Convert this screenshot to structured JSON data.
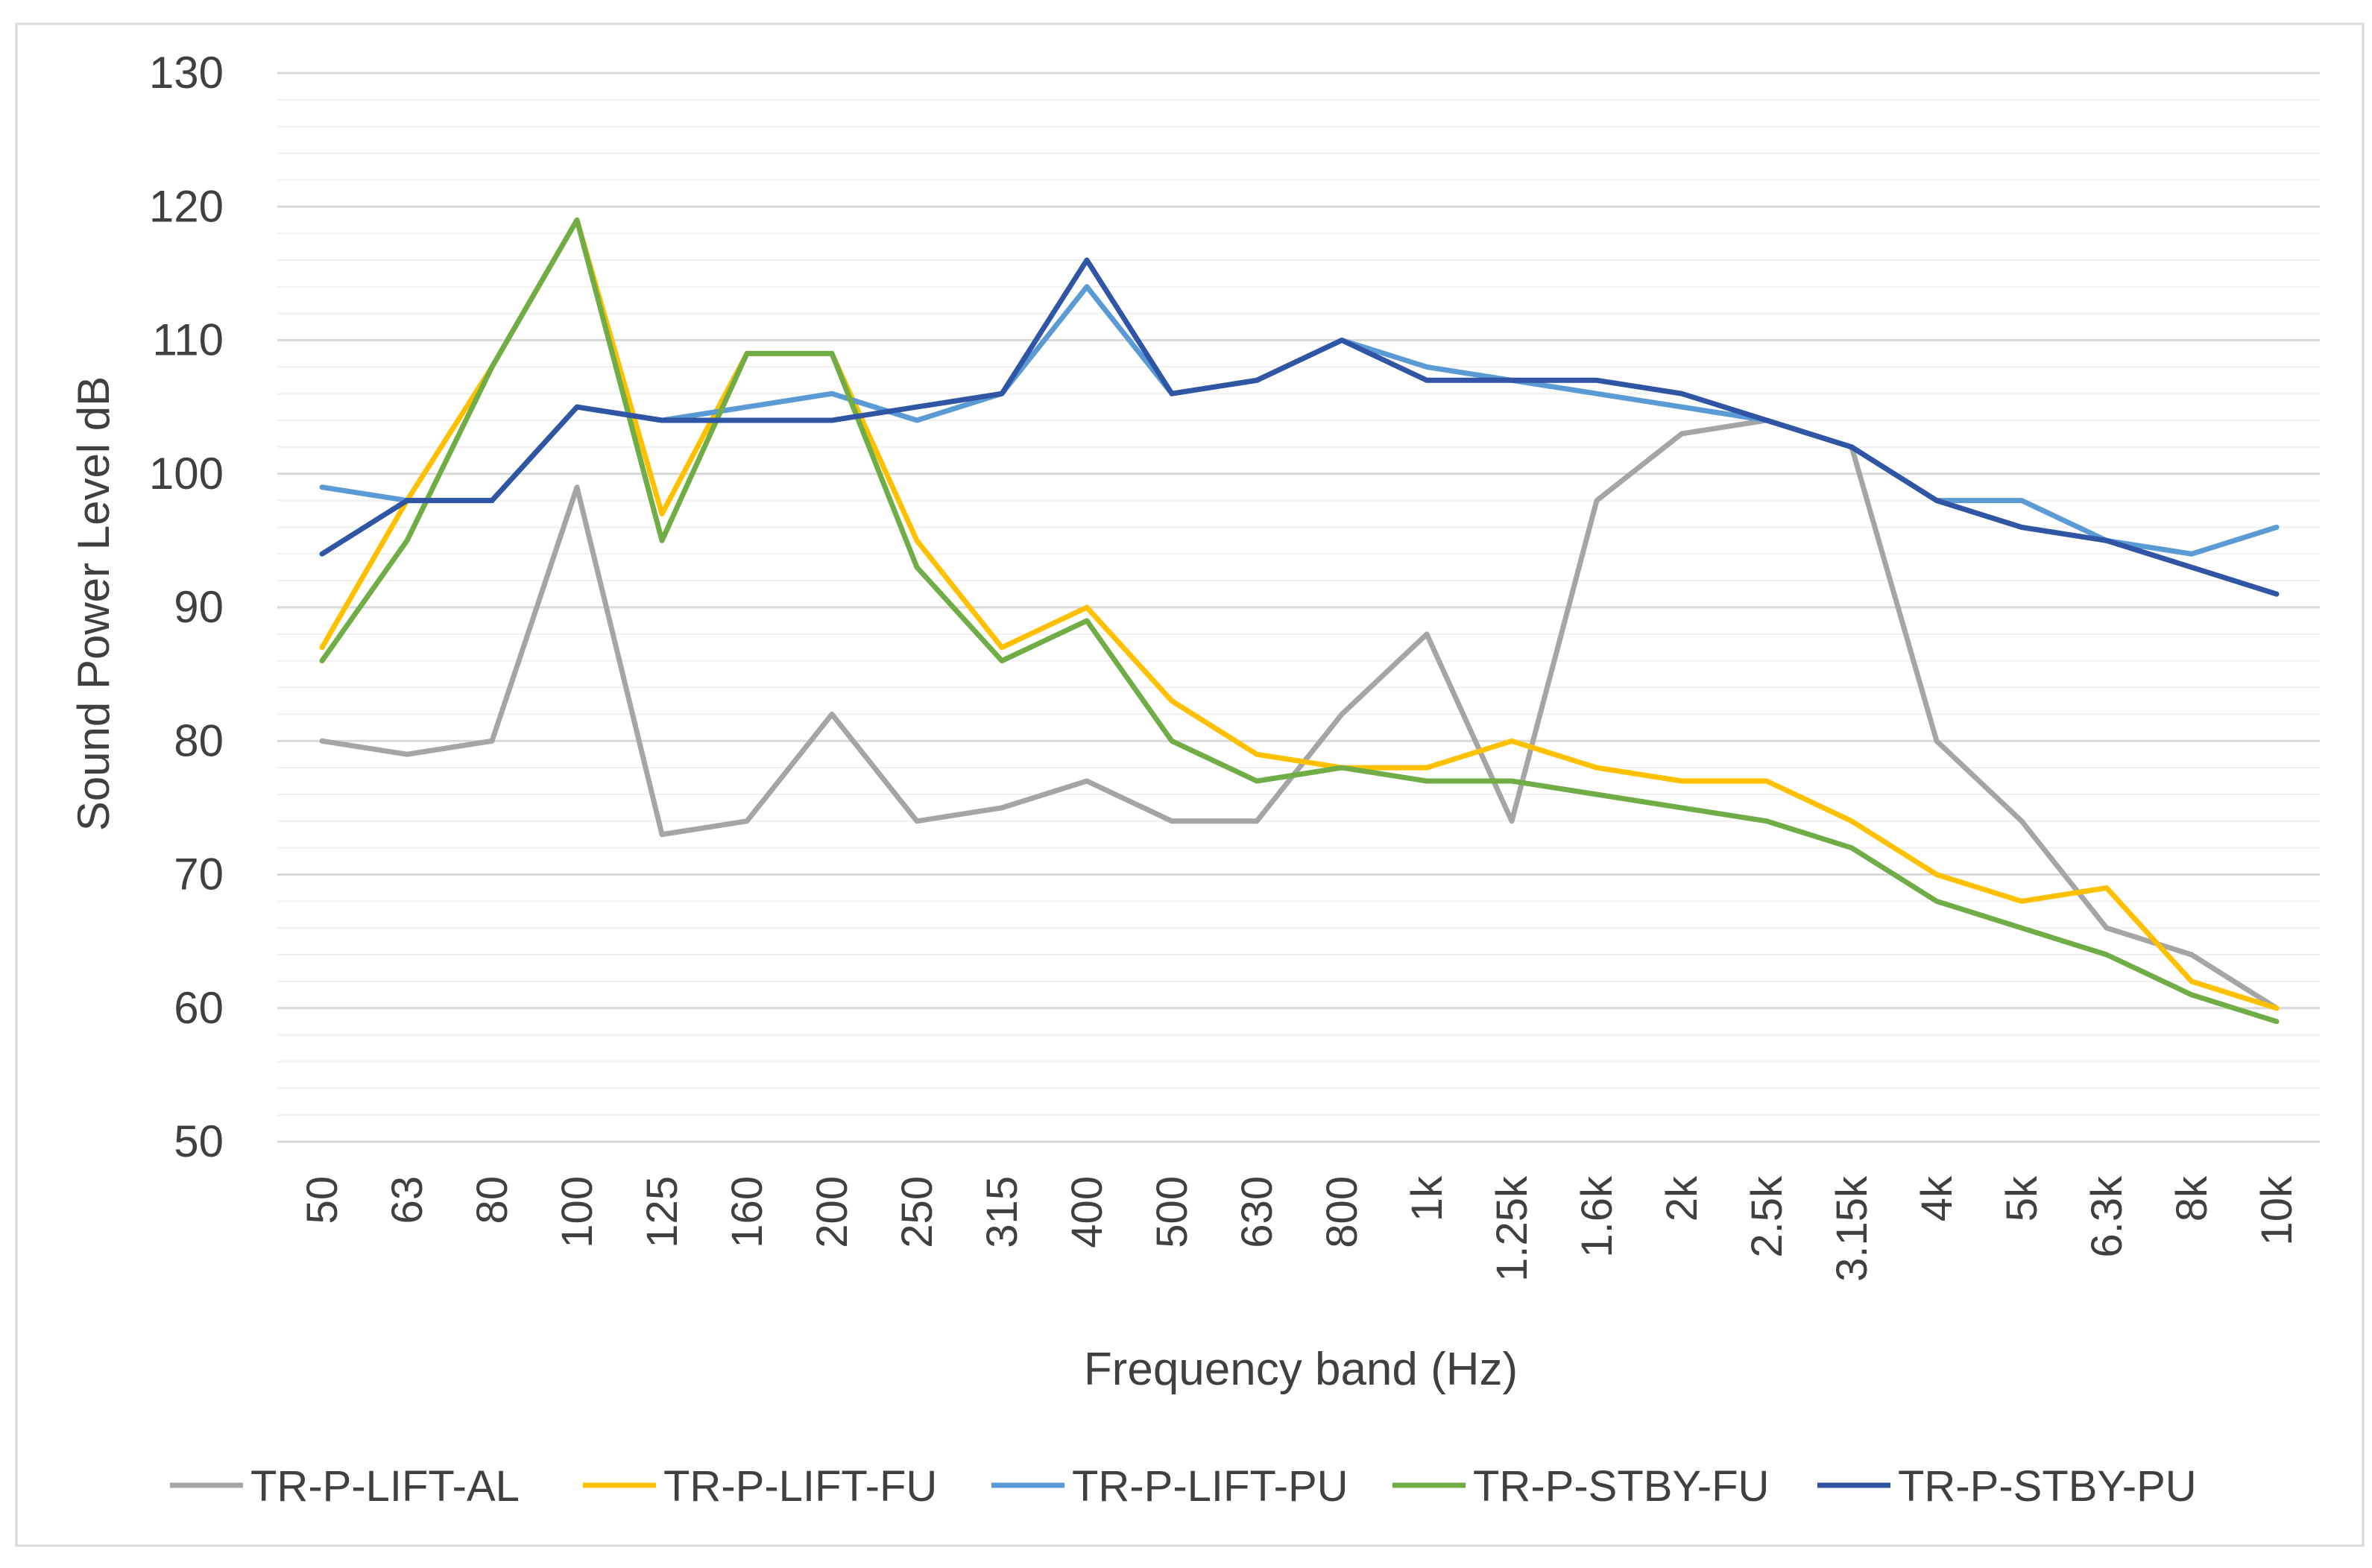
{
  "chart_data": {
    "type": "line",
    "title": "",
    "xlabel": "Frequency band (Hz)",
    "ylabel": "Sound Power Level dB",
    "ylim": [
      50,
      130
    ],
    "ymajor_step": 10,
    "yminor_step": 2,
    "yticks": [
      "50",
      "60",
      "70",
      "80",
      "90",
      "100",
      "110",
      "120",
      "130"
    ],
    "grid": true,
    "legend_position": "bottom",
    "categories": [
      "50",
      "63",
      "80",
      "100",
      "125",
      "160",
      "200",
      "250",
      "315",
      "400",
      "500",
      "630",
      "800",
      "1k",
      "1.25k",
      "1.6k",
      "2k",
      "2.5k",
      "3.15k",
      "4k",
      "5k",
      "6.3k",
      "8k",
      "10k"
    ],
    "series": [
      {
        "name": "TR-P-LIFT-AL",
        "color": "#a5a5a5",
        "values": [
          80,
          79,
          80,
          99,
          73,
          74,
          82,
          74,
          75,
          77,
          74,
          74,
          82,
          88,
          74,
          98,
          103,
          104,
          102,
          80,
          74,
          66,
          64,
          60
        ]
      },
      {
        "name": "TR-P-LIFT-FU",
        "color": "#ffc000",
        "values": [
          87,
          98,
          108,
          119,
          97,
          109,
          109,
          95,
          87,
          90,
          83,
          79,
          78,
          78,
          80,
          78,
          77,
          77,
          74,
          70,
          68,
          69,
          62,
          60
        ]
      },
      {
        "name": "TR-P-LIFT-PU",
        "color": "#5b9bd5",
        "values": [
          99,
          98,
          98,
          105,
          104,
          105,
          106,
          104,
          106,
          114,
          106,
          107,
          110,
          108,
          107,
          106,
          105,
          104,
          102,
          98,
          98,
          95,
          94,
          96
        ]
      },
      {
        "name": "TR-P-STBY-FU",
        "color": "#70ad47",
        "values": [
          86,
          95,
          108,
          119,
          95,
          109,
          109,
          93,
          86,
          89,
          80,
          77,
          78,
          77,
          77,
          76,
          75,
          74,
          72,
          68,
          66,
          64,
          61,
          59
        ]
      },
      {
        "name": "TR-P-STBY-PU",
        "color": "#2f55a4",
        "values": [
          94,
          98,
          98,
          105,
          104,
          104,
          104,
          105,
          106,
          116,
          106,
          107,
          110,
          107,
          107,
          107,
          106,
          104,
          102,
          98,
          96,
          95,
          93,
          91
        ]
      }
    ]
  }
}
